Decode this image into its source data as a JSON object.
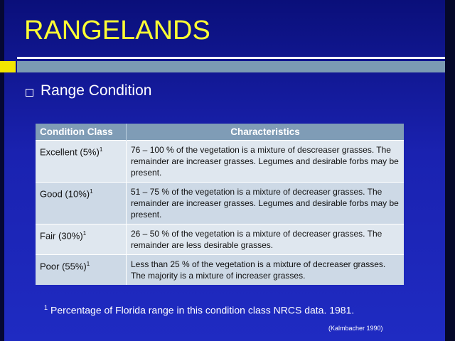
{
  "slide": {
    "title": "RANGELANDS",
    "bullet": "Range Condition"
  },
  "table": {
    "headers": [
      "Condition Class",
      "Characteristics"
    ],
    "rows": [
      {
        "condition": "Excellent (5%)",
        "note_marker": "1",
        "characteristics": "76 – 100 % of the vegetation is a mixture of descreaser grasses.  The remainder are increaser grasses. Legumes and desirable forbs may be present."
      },
      {
        "condition": "Good (10%)",
        "note_marker": "1",
        "characteristics": "51 – 75 % of the vegetation is a mixture of decreaser grasses.  The remainder are increaser grasses.  Legumes and desirable forbs may be present."
      },
      {
        "condition": "Fair (30%)",
        "note_marker": "1",
        "characteristics": "26 – 50 % of the vegetation is a mixture of decreaser grasses.  The remainder are less desirable grasses."
      },
      {
        "condition": "Poor (55%)",
        "note_marker": "1",
        "characteristics": "Less than 25 % of the vegetation is a mixture of decreaser grasses.  The majority is a mixture of increaser grasses."
      }
    ]
  },
  "footnote": {
    "marker": "1",
    "text": "Percentage of Florida range in this condition class NRCS data. 1981."
  },
  "citation": "(Kalmbacher 1990)",
  "colors": {
    "background": "#1a22b0",
    "title": "#ffff33",
    "header": "#7f9cb6",
    "row": "#dfe7ef",
    "row_alt": "#cdd9e6",
    "accent_yellow": "#f2e600"
  }
}
